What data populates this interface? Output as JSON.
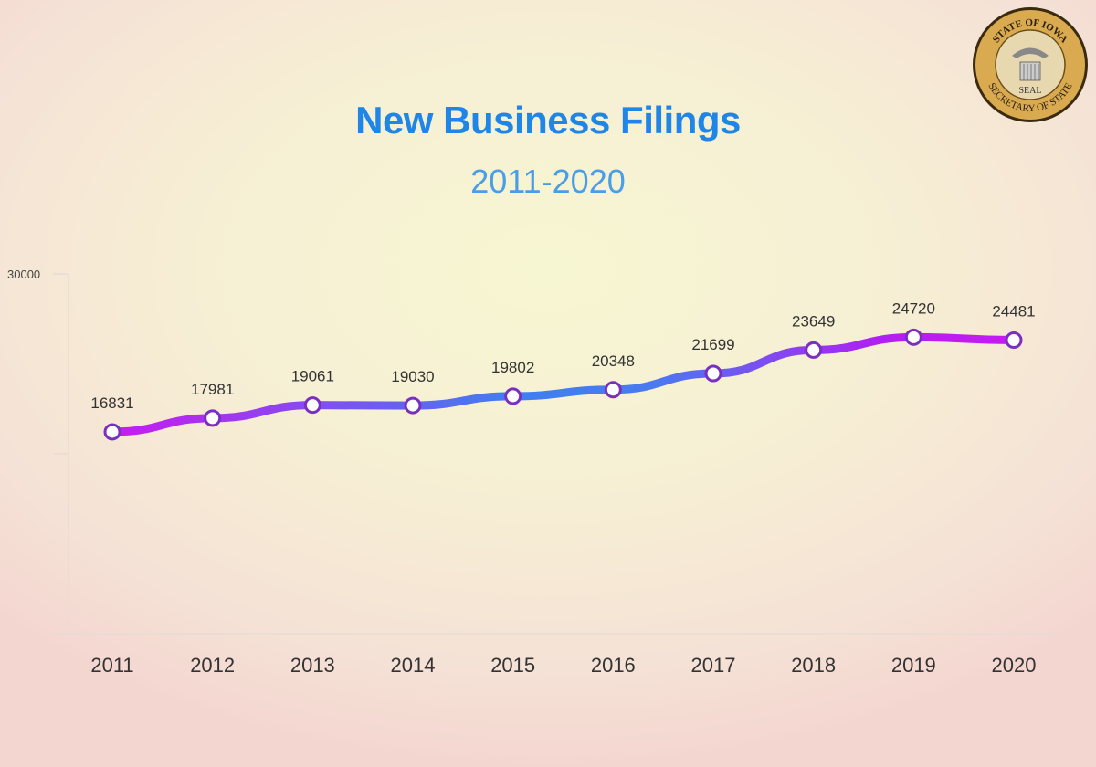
{
  "chart_data": {
    "type": "line",
    "title": "New Business Filings",
    "subtitle": "2011-2020",
    "categories": [
      "2011",
      "2012",
      "2013",
      "2014",
      "2015",
      "2016",
      "2017",
      "2018",
      "2019",
      "2020"
    ],
    "values": [
      16831,
      17981,
      19061,
      19030,
      19802,
      20348,
      21699,
      23649,
      24720,
      24481
    ],
    "ylim": [
      0,
      30000
    ],
    "yticks": [
      "30000"
    ],
    "grid": false,
    "colors": {
      "line_end": "#c81af0",
      "line_mid": "#3f7ff0",
      "marker_stroke": "#7b2fbf",
      "title": "#1f86e8"
    }
  },
  "seal": {
    "top_text": "STATE OF IOWA",
    "bottom_text": "SECRETARY OF STATE",
    "center_text": "SEAL"
  }
}
